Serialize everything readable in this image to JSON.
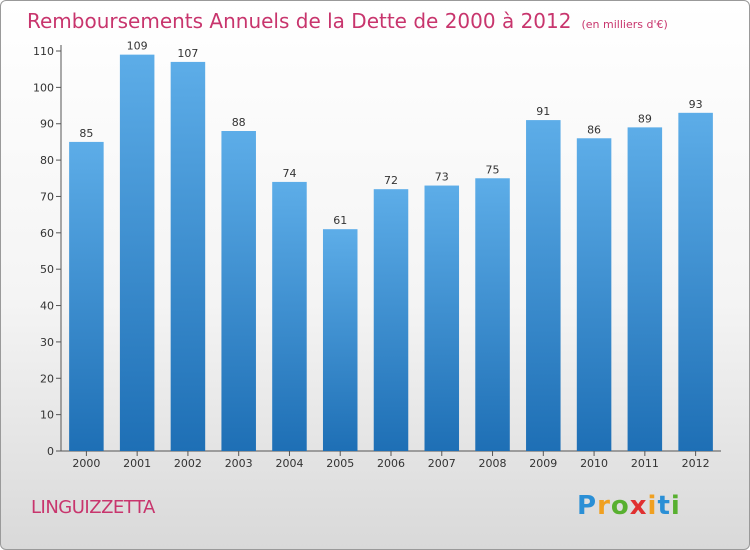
{
  "chart_data": {
    "type": "bar",
    "title": "Remboursements Annuels de la Dette de 2000 à 2012",
    "unit": "(en milliers d'€)",
    "categories": [
      "2000",
      "2001",
      "2002",
      "2003",
      "2004",
      "2005",
      "2006",
      "2007",
      "2008",
      "2009",
      "2010",
      "2011",
      "2012"
    ],
    "values": [
      85,
      109,
      107,
      88,
      74,
      61,
      72,
      73,
      75,
      91,
      86,
      89,
      93
    ],
    "yticks": [
      0,
      10,
      20,
      30,
      40,
      50,
      60,
      70,
      80,
      90,
      100,
      110
    ],
    "ylim": [
      0,
      110
    ],
    "grid": false,
    "bar_color_top": "#5dade8",
    "bar_color_bottom": "#1e6fb5"
  },
  "footer": {
    "location": "LINGUIZZETTA",
    "logo_letters": [
      {
        "ch": "P",
        "color": "#2a8fd6"
      },
      {
        "ch": "r",
        "color": "#f0a020"
      },
      {
        "ch": "o",
        "color": "#58b030"
      },
      {
        "ch": "x",
        "color": "#e03030"
      },
      {
        "ch": "i",
        "color": "#f0a020"
      },
      {
        "ch": "t",
        "color": "#2a8fd6"
      },
      {
        "ch": "i",
        "color": "#58b030"
      }
    ]
  }
}
